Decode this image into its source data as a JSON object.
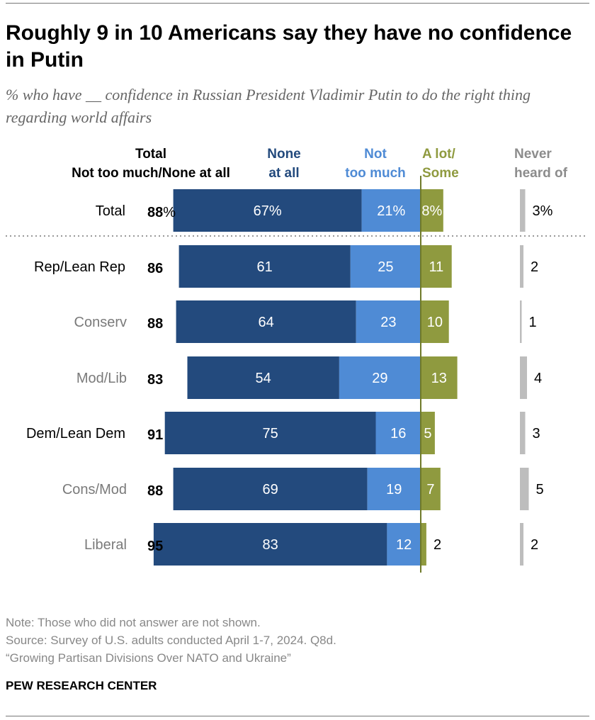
{
  "title": "Roughly 9 in 10 Americans say they have no confidence in Putin",
  "subtitle": "% who have __ confidence in Russian President Vladimir Putin to do the right thing regarding world affairs",
  "headers": {
    "total_line1": "Total",
    "total_line2": "Not too much/None at all",
    "none_line1": "None",
    "none_line2": "at all",
    "nottoo_line1": "Not",
    "nottoo_line2": "too much",
    "alot_line1": "A lot/",
    "alot_line2": "Some",
    "never_line1": "Never",
    "never_line2": "heard of"
  },
  "colors": {
    "none": "#234a7d",
    "not_too_much": "#4f8bd5",
    "a_lot_some": "#8f9a3f",
    "never": "#bdbdbd",
    "header_none": "#234a7d",
    "header_not_too_much": "#4f8bd5",
    "header_a_lot": "#8f9a3f",
    "header_never": "#8c8c8c"
  },
  "chart_data": {
    "type": "bar",
    "orientation": "horizontal-diverging",
    "series": [
      {
        "name": "None at all",
        "values": [
          67,
          61,
          64,
          54,
          75,
          69,
          83
        ]
      },
      {
        "name": "Not too much",
        "values": [
          21,
          25,
          23,
          29,
          16,
          19,
          12
        ]
      },
      {
        "name": "A lot/Some",
        "values": [
          8,
          11,
          10,
          13,
          5,
          7,
          2
        ]
      },
      {
        "name": "Never heard of",
        "values": [
          3,
          2,
          1,
          4,
          3,
          5,
          2
        ]
      }
    ],
    "rows": [
      {
        "label": "Total",
        "total": "88",
        "total_suffix": "%",
        "none": 67,
        "not_too_much": 21,
        "a_lot": 8,
        "never": 3,
        "none_label": "67%",
        "ntm_label": "21%",
        "alot_label": "8%",
        "never_label": "3%",
        "style": "main"
      },
      {
        "label": "Rep/Lean Rep",
        "total": "86",
        "total_suffix": "",
        "none": 61,
        "not_too_much": 25,
        "a_lot": 11,
        "never": 2,
        "none_label": "61",
        "ntm_label": "25",
        "alot_label": "11",
        "never_label": "2",
        "style": "main"
      },
      {
        "label": "Conserv",
        "total": "88",
        "total_suffix": "",
        "none": 64,
        "not_too_much": 23,
        "a_lot": 10,
        "never": 1,
        "none_label": "64",
        "ntm_label": "23",
        "alot_label": "10",
        "never_label": "1",
        "style": "sub"
      },
      {
        "label": "Mod/Lib",
        "total": "83",
        "total_suffix": "",
        "none": 54,
        "not_too_much": 29,
        "a_lot": 13,
        "never": 4,
        "none_label": "54",
        "ntm_label": "29",
        "alot_label": "13",
        "never_label": "4",
        "style": "sub"
      },
      {
        "label": "Dem/Lean Dem",
        "total": "91",
        "total_suffix": "",
        "none": 75,
        "not_too_much": 16,
        "a_lot": 5,
        "never": 3,
        "none_label": "75",
        "ntm_label": "16",
        "alot_label": "5",
        "never_label": "3",
        "style": "main"
      },
      {
        "label": "Cons/Mod",
        "total": "88",
        "total_suffix": "",
        "none": 69,
        "not_too_much": 19,
        "a_lot": 7,
        "never": 5,
        "none_label": "69",
        "ntm_label": "19",
        "alot_label": "7",
        "never_label": "5",
        "style": "sub"
      },
      {
        "label": "Liberal",
        "total": "95",
        "total_suffix": "",
        "none": 83,
        "not_too_much": 12,
        "a_lot": 2,
        "never": 2,
        "none_label": "83",
        "ntm_label": "12",
        "alot_label": "2",
        "never_label": "2",
        "style": "sub"
      }
    ]
  },
  "notes": {
    "note": "Note: Those who did not answer are not shown.",
    "source": "Source: Survey of U.S. adults conducted April 1-7, 2024. Q8d.",
    "report": "“Growing Partisan Divisions Over NATO and Ukraine”"
  },
  "org": "PEW RESEARCH CENTER"
}
